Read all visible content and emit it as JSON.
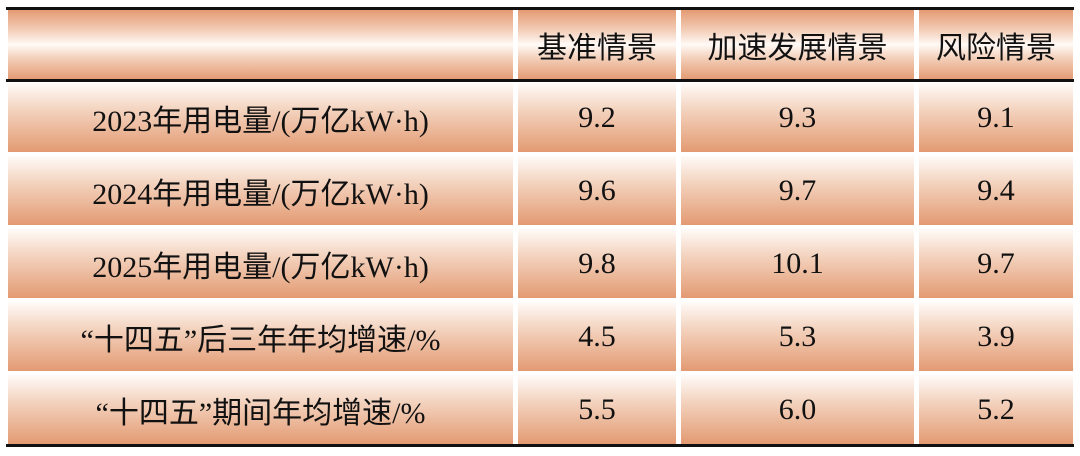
{
  "table": {
    "headers": [
      "",
      "基准情景",
      "加速发展情景",
      "风险情景"
    ],
    "rows": [
      {
        "label": "2023年用电量/(万亿kW·h)",
        "values": [
          "9.2",
          "9.3",
          "9.1"
        ]
      },
      {
        "label": "2024年用电量/(万亿kW·h)",
        "values": [
          "9.6",
          "9.7",
          "9.4"
        ]
      },
      {
        "label": "2025年用电量/(万亿kW·h)",
        "values": [
          "9.8",
          "10.1",
          "9.7"
        ]
      },
      {
        "label": "“十四五”后三年年均增速/%",
        "values": [
          "4.5",
          "5.3",
          "3.9"
        ]
      },
      {
        "label": "“十四五”期间年均增速/%",
        "values": [
          "5.5",
          "6.0",
          "5.2"
        ]
      }
    ]
  },
  "colors": {
    "cell_gradient_dark": "#e39a72",
    "cell_gradient_light": "#fffbf8",
    "rule": "#111111"
  }
}
